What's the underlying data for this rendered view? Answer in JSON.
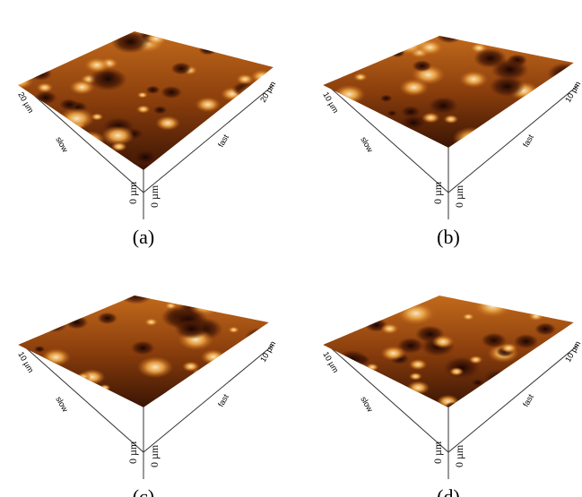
{
  "panels": [
    {
      "label": "(a)",
      "left_max": "20 µm",
      "right_max": "20 µm",
      "slow_axis": "slow",
      "fast_axis": "fast",
      "left_origin": "0 µm",
      "right_origin": "0 µm"
    },
    {
      "label": "(b)",
      "left_max": "10 µm",
      "right_max": "10 µm",
      "slow_axis": "slow",
      "fast_axis": "fast",
      "left_origin": "0 µm",
      "right_origin": "0 µm"
    },
    {
      "label": "(c)",
      "left_max": "10 µm",
      "right_max": "10 µm",
      "slow_axis": "slow",
      "fast_axis": "fast",
      "left_origin": "0 µm",
      "right_origin": "0 µm"
    },
    {
      "label": "(d)",
      "left_max": "10 µm",
      "right_max": "10 µm",
      "slow_axis": "slow",
      "fast_axis": "fast",
      "left_origin": "0 µm",
      "right_origin": "0 µm"
    }
  ]
}
